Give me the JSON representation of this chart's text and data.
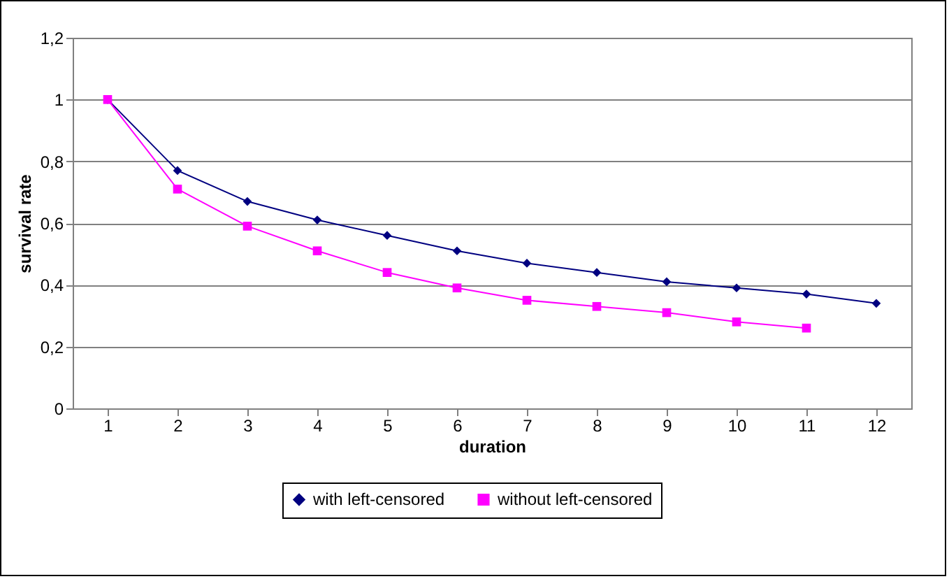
{
  "chart_data": {
    "type": "line",
    "xlabel": "duration",
    "ylabel": "survival rate",
    "x": [
      1,
      2,
      3,
      4,
      5,
      6,
      7,
      8,
      9,
      10,
      11,
      12
    ],
    "series": [
      {
        "name": "with left-censored",
        "color": "#000080",
        "marker": "diamond",
        "values": [
          1,
          0.77,
          0.67,
          0.61,
          0.56,
          0.51,
          0.47,
          0.44,
          0.41,
          0.39,
          0.37,
          0.34
        ]
      },
      {
        "name": "without left-censored",
        "color": "#ff00ff",
        "marker": "square",
        "values": [
          1,
          0.71,
          0.59,
          0.51,
          0.44,
          0.39,
          0.35,
          0.33,
          0.31,
          0.28,
          0.26,
          null
        ]
      }
    ],
    "xlim": [
      0.5,
      12.5
    ],
    "xticks": [
      1,
      2,
      3,
      4,
      5,
      6,
      7,
      8,
      9,
      10,
      11,
      12
    ],
    "ylim": [
      0,
      1.2
    ],
    "yticks": [
      {
        "value": 0,
        "label": "0"
      },
      {
        "value": 0.2,
        "label": "0,2"
      },
      {
        "value": 0.4,
        "label": "0,4"
      },
      {
        "value": 0.6,
        "label": "0,6"
      },
      {
        "value": 0.8,
        "label": "0,8"
      },
      {
        "value": 1,
        "label": "1"
      },
      {
        "value": 1.2,
        "label": "1,2"
      }
    ],
    "grid": "y",
    "legend": "bottom",
    "line_style": "solid"
  }
}
